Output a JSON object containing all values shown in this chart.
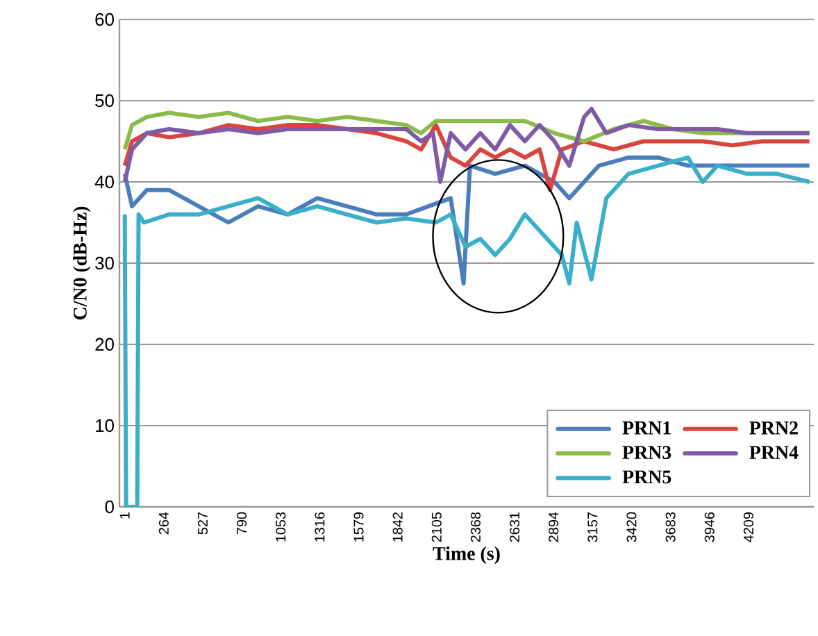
{
  "chart_data": {
    "type": "line",
    "xlabel": "Time (s)",
    "ylabel": "C/N0 (dB-Hz)",
    "xlim": [
      -35,
      4650
    ],
    "xticks": [
      1,
      264,
      527,
      790,
      1053,
      1316,
      1579,
      1842,
      2105,
      2368,
      2631,
      2894,
      3157,
      3420,
      3683,
      3946,
      4209
    ],
    "ylim": [
      0,
      60
    ],
    "yticks": [
      0,
      10,
      20,
      30,
      40,
      50,
      60
    ],
    "grid": "y",
    "legend": "bottom right",
    "line_style": "solid",
    "series": [
      {
        "name": "PRN1",
        "color": "#4a7ebb",
        "x": [
          1,
          50,
          150,
          300,
          500,
          700,
          900,
          1100,
          1300,
          1500,
          1700,
          1900,
          2050,
          2200,
          2287,
          2330,
          2500,
          2700,
          2900,
          3000,
          3100,
          3200,
          3400,
          3600,
          3800,
          4000,
          4200,
          4400,
          4620
        ],
        "values": [
          41,
          37,
          39,
          39,
          37,
          35,
          37,
          36,
          38,
          37,
          36,
          36,
          37,
          38,
          27.5,
          42,
          41,
          42,
          40,
          38,
          40,
          42,
          43,
          43,
          42,
          42,
          42,
          42,
          42
        ]
      },
      {
        "name": "PRN2",
        "color": "#d9443f",
        "x": [
          1,
          50,
          150,
          300,
          500,
          700,
          900,
          1100,
          1300,
          1500,
          1700,
          1900,
          2000,
          2100,
          2200,
          2300,
          2400,
          2500,
          2600,
          2700,
          2800,
          2870,
          2950,
          3100,
          3300,
          3500,
          3700,
          3900,
          4100,
          4300,
          4500,
          4620
        ],
        "values": [
          42,
          45,
          46,
          45.5,
          46,
          47,
          46.5,
          47,
          47,
          46.5,
          46,
          45,
          44,
          47,
          43,
          42,
          44,
          43,
          44,
          43,
          44,
          39,
          44,
          45,
          44,
          45,
          45,
          45,
          44.5,
          45,
          45,
          45
        ]
      },
      {
        "name": "PRN3",
        "color": "#8cbb4b",
        "x": [
          1,
          50,
          150,
          300,
          500,
          700,
          900,
          1100,
          1300,
          1500,
          1700,
          1900,
          2000,
          2100,
          2300,
          2500,
          2700,
          2900,
          3100,
          3300,
          3500,
          3700,
          3900,
          4100,
          4300,
          4500,
          4620
        ],
        "values": [
          44,
          47,
          48,
          48.5,
          48,
          48.5,
          47.5,
          48,
          47.5,
          48,
          47.5,
          47,
          46,
          47.5,
          47.5,
          47.5,
          47.5,
          46,
          45,
          46.5,
          47.5,
          46.5,
          46,
          46,
          46,
          46,
          46
        ]
      },
      {
        "name": "PRN4",
        "color": "#7f5ba6",
        "x": [
          1,
          50,
          150,
          300,
          500,
          700,
          900,
          1100,
          1300,
          1500,
          1700,
          1900,
          2000,
          2080,
          2130,
          2200,
          2300,
          2400,
          2500,
          2600,
          2700,
          2800,
          2900,
          3000,
          3100,
          3150,
          3250,
          3400,
          3600,
          3800,
          4000,
          4200,
          4400,
          4620
        ],
        "values": [
          40,
          44,
          46,
          46.5,
          46,
          46.5,
          46,
          46.5,
          46.5,
          46.5,
          46.5,
          46.5,
          45,
          46,
          40,
          46,
          44,
          46,
          44,
          47,
          45,
          47,
          45,
          42,
          48,
          49,
          46,
          47,
          46.5,
          46.5,
          46.5,
          46,
          46,
          46
        ]
      },
      {
        "name": "PRN5",
        "color": "#3aafc9",
        "x": [
          1,
          10,
          85,
          94,
          130,
          300,
          500,
          700,
          900,
          1100,
          1300,
          1500,
          1700,
          1900,
          2100,
          2200,
          2300,
          2400,
          2500,
          2600,
          2700,
          2800,
          2950,
          3000,
          3050,
          3150,
          3250,
          3400,
          3600,
          3800,
          3900,
          4000,
          4200,
          4400,
          4620
        ],
        "values": [
          36,
          0,
          0,
          36,
          35,
          36,
          36,
          37,
          38,
          36,
          37,
          36,
          35,
          35.5,
          35,
          36,
          32,
          33,
          31,
          33,
          36,
          34,
          31,
          27.5,
          35,
          28,
          38,
          41,
          42,
          43,
          40,
          42,
          41,
          41,
          40
        ]
      }
    ]
  }
}
